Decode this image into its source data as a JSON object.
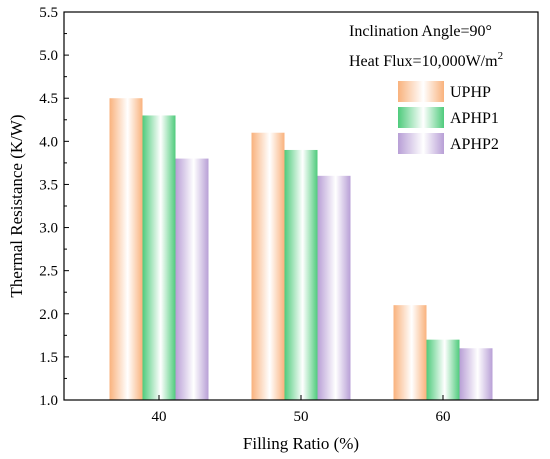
{
  "chart_data": {
    "type": "bar",
    "categories": [
      "40",
      "50",
      "60"
    ],
    "series": [
      {
        "name": "UPHP",
        "values": [
          4.5,
          4.1,
          2.1
        ],
        "color": "#f9b27d"
      },
      {
        "name": "APHP1",
        "values": [
          4.3,
          3.9,
          1.7
        ],
        "color": "#4fcb7c"
      },
      {
        "name": "APHP2",
        "values": [
          3.8,
          3.6,
          1.6
        ],
        "color": "#b89fd6"
      }
    ],
    "xlabel": "Filling Ratio (%)",
    "ylabel": "Thermal Resistance (K/W)",
    "ylim": [
      1.0,
      5.5
    ],
    "yticks": [
      "1.0",
      "1.5",
      "2.0",
      "2.5",
      "3.0",
      "3.5",
      "4.0",
      "4.5",
      "5.0",
      "5.5"
    ],
    "annotations": {
      "line1": "Inclination Angle=90°",
      "line2_main": "Heat Flux=10,000W/m",
      "line2_sup": "2"
    },
    "legend_position": "top-right",
    "grid": false
  }
}
